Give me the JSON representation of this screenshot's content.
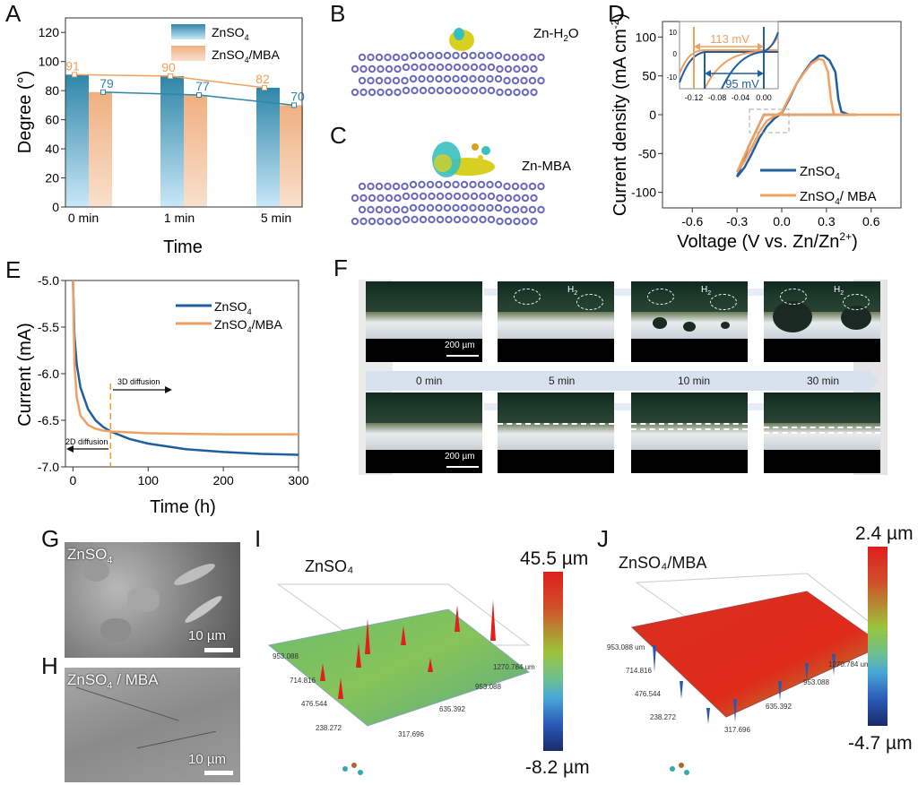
{
  "panels": {
    "A": "A",
    "B": "B",
    "C": "C",
    "D": "D",
    "E": "E",
    "F": "F",
    "G": "G",
    "H": "H",
    "I": "I",
    "J": "J"
  },
  "chart_data": [
    {
      "panel": "A",
      "type": "bar",
      "title": "",
      "xlabel": "Time",
      "ylabel": "Degree (°)",
      "ylim": [
        0,
        130
      ],
      "yticks": [
        "0",
        "20",
        "40",
        "60",
        "80",
        "100",
        "120"
      ],
      "categories": [
        "0 min",
        "1 min",
        "5 min"
      ],
      "series": [
        {
          "name": "ZnSO4",
          "name_main": "ZnSO",
          "name_sub": "4",
          "name_tail": "",
          "values": [
            91,
            90,
            82
          ],
          "color": "#2f86a8"
        },
        {
          "name": "ZnSO4/MBA",
          "name_main": "ZnSO",
          "name_sub": "4",
          "name_tail": "/MBA",
          "values": [
            79,
            77,
            70
          ],
          "color": "#f0b888"
        }
      ],
      "lines": [
        {
          "name": "orange-line",
          "labels": [
            "91",
            "90",
            "82"
          ],
          "values": [
            91,
            90,
            82
          ],
          "color": "#f0a060"
        },
        {
          "name": "blue-line",
          "labels": [
            "79",
            "77",
            "70"
          ],
          "values": [
            79,
            77,
            70
          ],
          "color": "#2f86a8"
        }
      ],
      "legend": "top-right"
    },
    {
      "panel": "D",
      "type": "line",
      "xlabel_main": "Voltage (V vs. Zn/Zn",
      "xlabel_sup": "2+",
      "xlabel_tail": ")",
      "ylabel_main": "Current density (mA cm",
      "ylabel_sup": "-2",
      "ylabel_tail": ")",
      "xlim": [
        -0.8,
        0.8
      ],
      "ylim": [
        -120,
        120
      ],
      "xticks": [
        "-0.6",
        "-0.3",
        "0.0",
        "0.3",
        "0.6"
      ],
      "xtick_values": [
        -0.6,
        -0.3,
        0.0,
        0.3,
        0.6
      ],
      "yticks": [
        "100",
        "50",
        "0",
        "-50",
        "-100"
      ],
      "ytick_values": [
        100,
        50,
        0,
        -50,
        -100
      ],
      "series": [
        {
          "name": "ZnSO4",
          "label_main": "ZnSO",
          "label_sub": "4",
          "label_tail": "",
          "color": "#1f5f9e",
          "x": [
            -0.3,
            -0.25,
            -0.2,
            -0.15,
            -0.1,
            -0.05,
            0.0,
            0.05,
            0.1,
            0.15,
            0.2,
            0.25,
            0.28,
            0.32,
            0.36,
            0.38,
            0.4,
            0.45,
            0.5
          ],
          "y": [
            -80,
            -68,
            -50,
            -30,
            -15,
            -5,
            2,
            20,
            40,
            55,
            68,
            76,
            76,
            70,
            55,
            20,
            4,
            0,
            0
          ]
        },
        {
          "name": "ZnSO4/ MBA",
          "label_main": "ZnSO",
          "label_sub": "4",
          "label_tail": "/ MBA",
          "color": "#f0a060",
          "x": [
            -0.3,
            -0.25,
            -0.2,
            -0.15,
            -0.1,
            -0.05,
            0.0,
            0.05,
            0.1,
            0.15,
            0.2,
            0.25,
            0.28,
            0.31,
            0.33,
            0.35,
            0.5,
            0.8
          ],
          "y": [
            -74,
            -60,
            -42,
            -22,
            -8,
            -2,
            3,
            22,
            40,
            54,
            66,
            72,
            70,
            55,
            20,
            0,
            0,
            0
          ]
        }
      ],
      "inset": {
        "xticks": [
          "-0.12",
          "-0.08",
          "-0.04",
          "0.00"
        ],
        "yticks": [
          "10",
          "0",
          "-10"
        ],
        "annotations": [
          "113 mV",
          "95 mV"
        ]
      },
      "legend": "bottom-right"
    },
    {
      "panel": "E",
      "type": "line",
      "xlabel": "Time (h)",
      "ylabel": "Current (mA)",
      "xlim": [
        -10,
        300
      ],
      "ylim": [
        -7.0,
        -5.0
      ],
      "xticks": [
        "0",
        "100",
        "200",
        "300"
      ],
      "xtick_values": [
        0,
        100,
        200,
        300
      ],
      "yticks": [
        "-5.0",
        "-5.5",
        "-6.0",
        "-6.5",
        "-7.0"
      ],
      "ytick_values": [
        -5.0,
        -5.5,
        -6.0,
        -6.5,
        -7.0
      ],
      "series": [
        {
          "name": "ZnSO4",
          "label_main": "ZnSO",
          "label_sub": "4",
          "label_tail": "",
          "color": "#1f5f9e",
          "x": [
            0,
            2,
            5,
            10,
            20,
            30,
            40,
            50,
            75,
            100,
            150,
            200,
            250,
            300
          ],
          "y": [
            -5.0,
            -5.6,
            -5.9,
            -6.15,
            -6.38,
            -6.5,
            -6.57,
            -6.62,
            -6.7,
            -6.75,
            -6.81,
            -6.84,
            -6.86,
            -6.87
          ]
        },
        {
          "name": "ZnSO4/MBA",
          "label_main": "ZnSO",
          "label_sub": "4",
          "label_tail": "/MBA",
          "color": "#f0a060",
          "x": [
            0,
            2,
            5,
            10,
            20,
            30,
            40,
            50,
            75,
            100,
            150,
            200,
            250,
            300
          ],
          "y": [
            -5.0,
            -5.9,
            -6.25,
            -6.45,
            -6.55,
            -6.59,
            -6.61,
            -6.62,
            -6.63,
            -6.64,
            -6.645,
            -6.65,
            -6.65,
            -6.65
          ]
        }
      ],
      "annotations": {
        "divider_x": 50,
        "right_label": "3D diffusion",
        "left_label": "2D diffusion"
      },
      "legend": "top-right"
    }
  ],
  "panel_B": {
    "label_main": "Zn-H",
    "label_sub": "2",
    "label_tail": "O"
  },
  "panel_C": {
    "label": "Zn-MBA"
  },
  "panel_F": {
    "times": [
      "0 min",
      "5 min",
      "10 min",
      "30 min"
    ],
    "bubble_label_main": "H",
    "bubble_label_sub": "2",
    "scale_bar": "200 µm"
  },
  "panel_G": {
    "label_main": "ZnSO",
    "label_sub": "4",
    "label_tail": "",
    "scale_bar": "10 µm"
  },
  "panel_H": {
    "label_main": "ZnSO",
    "label_sub": "4",
    "label_tail": " / MBA",
    "scale_bar": "10 µm"
  },
  "panel_I": {
    "title": "ZnSO₄",
    "colorbar_max": "45.5 µm",
    "colorbar_min": "-8.2 µm",
    "axis_labels": [
      "953.088",
      "714.816",
      "476.544",
      "238.272",
      "317.696",
      "635.392",
      "953.088",
      "1270.784 um"
    ]
  },
  "panel_J": {
    "title": "ZnSO₄/MBA",
    "colorbar_max": "2.4 µm",
    "colorbar_min": "-4.7 µm",
    "axis_labels": [
      "953.088 um",
      "714.816",
      "476.544",
      "238.272",
      "317.696",
      "635.392",
      "953.088",
      "1270.784 um"
    ]
  }
}
